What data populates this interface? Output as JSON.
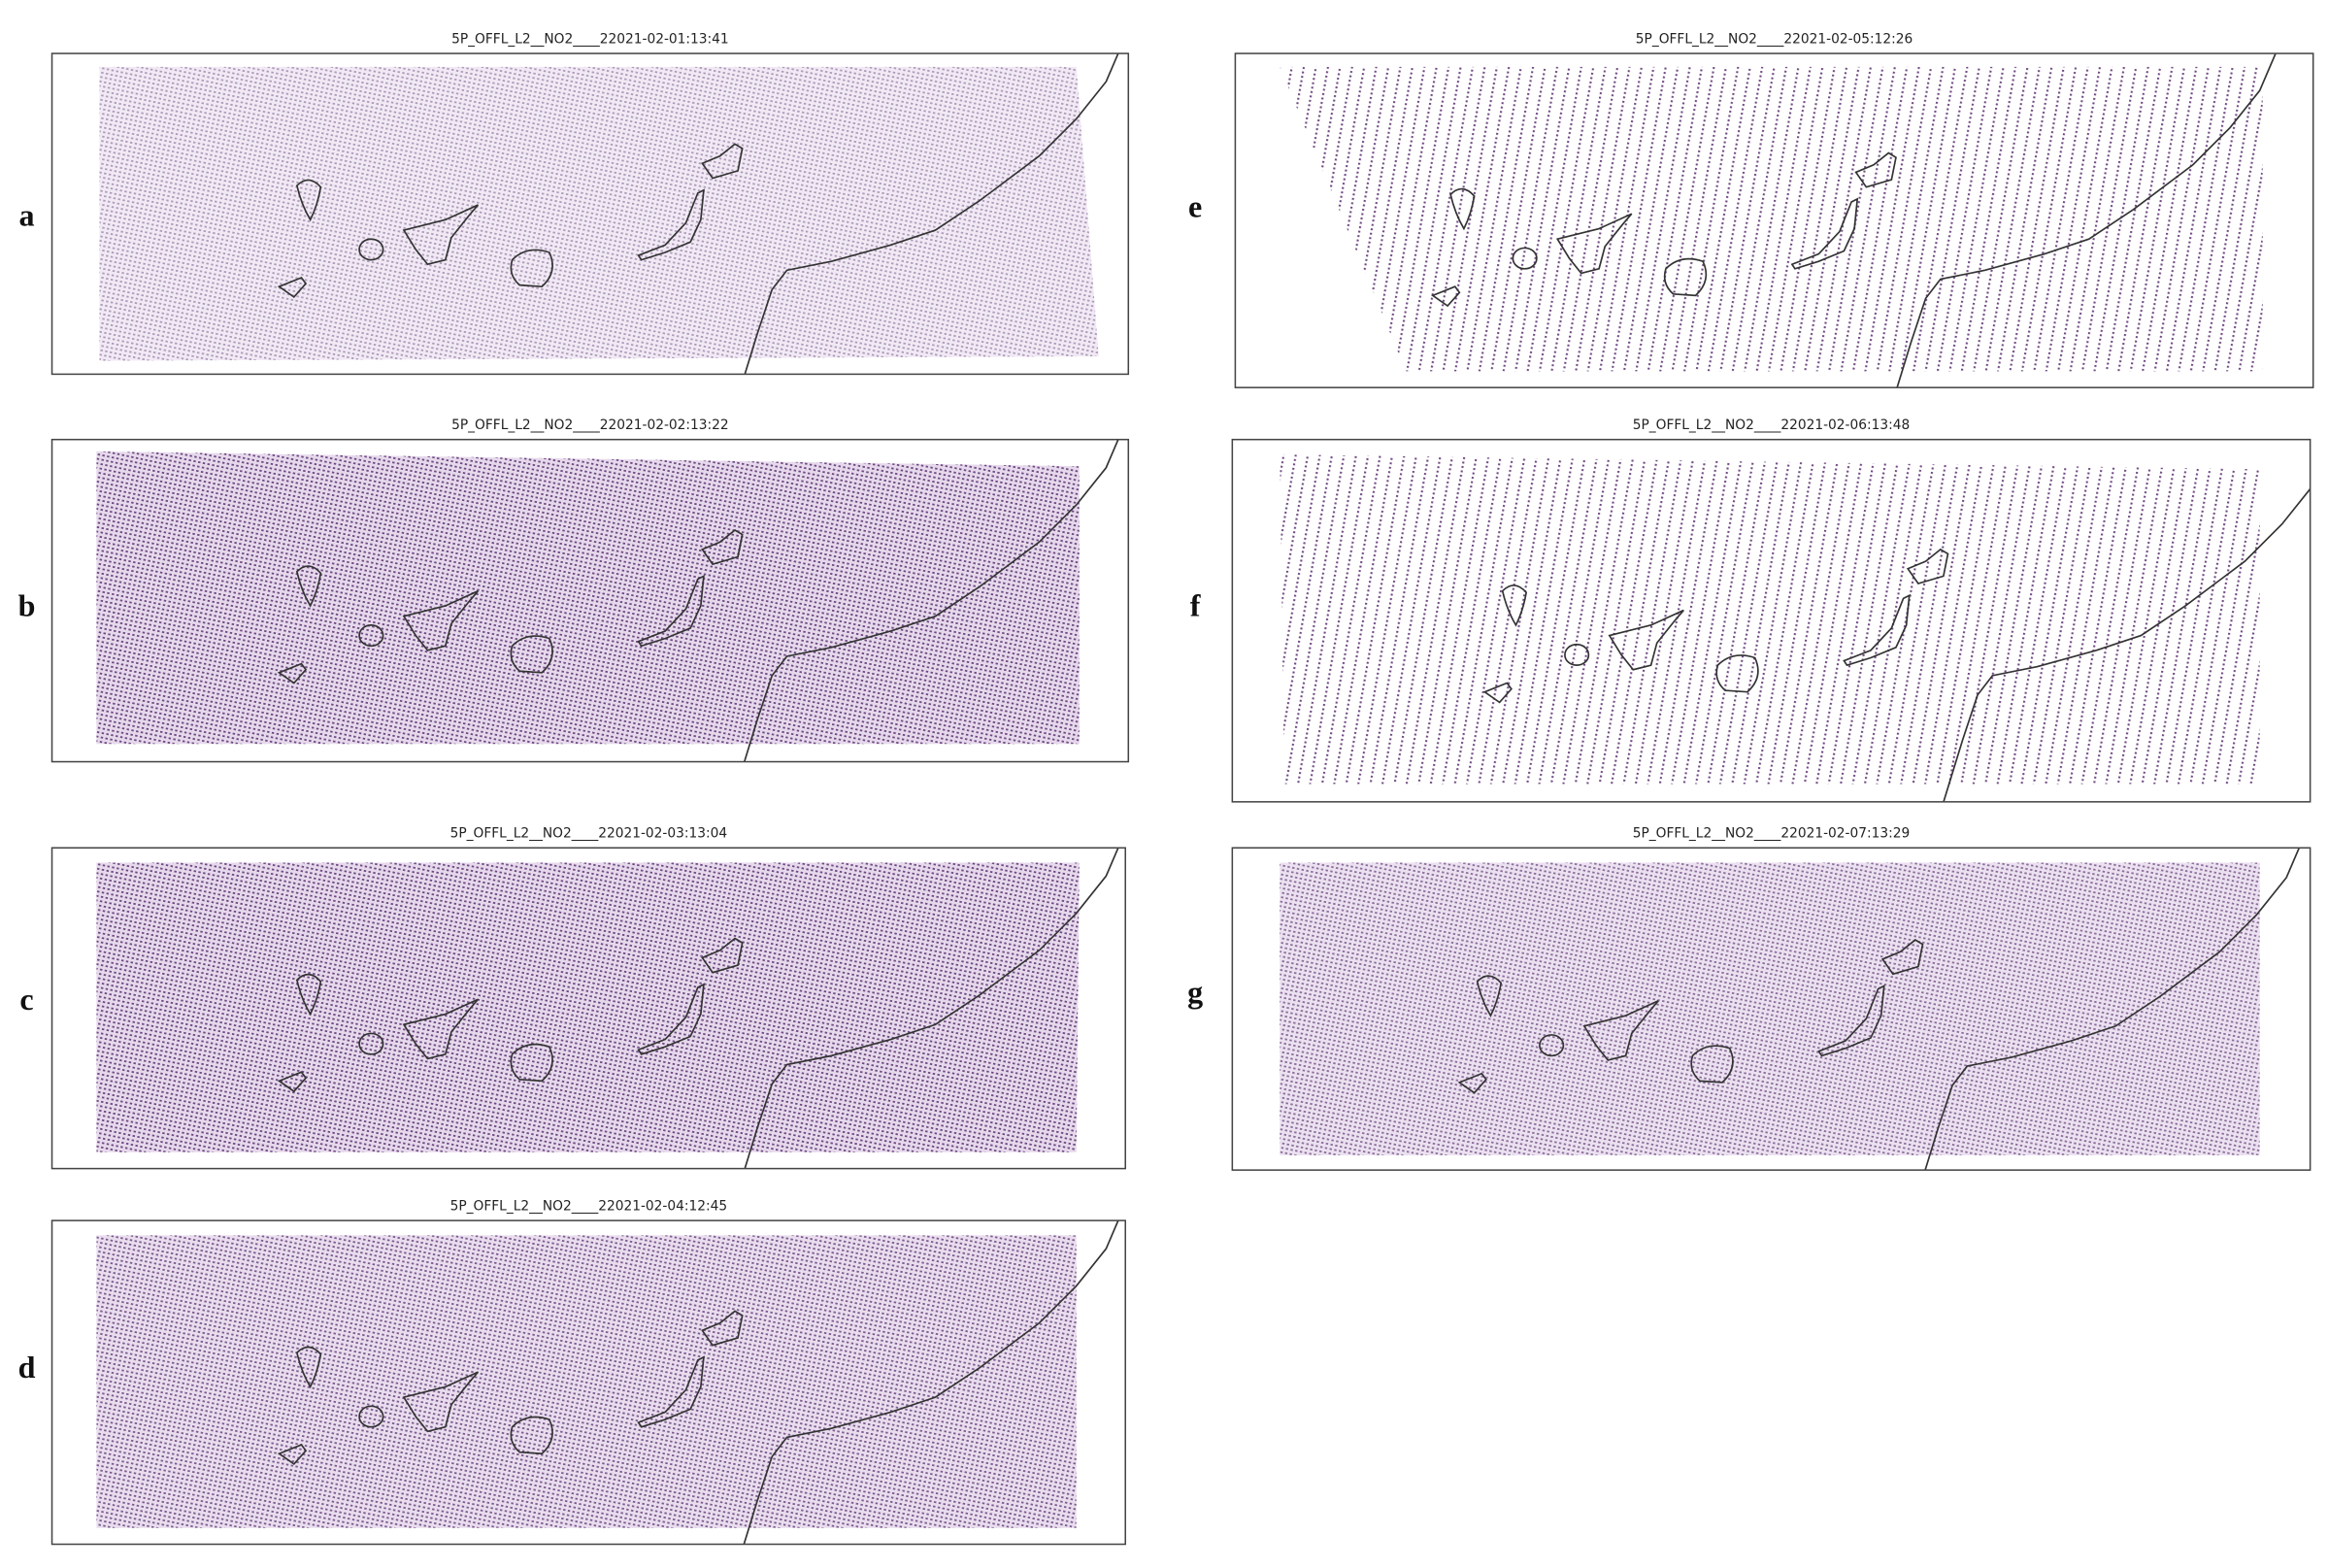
{
  "panels": [
    {
      "label": "a",
      "title": "5P_OFFL_L2__NO2____22021-02-01:13:41"
    },
    {
      "label": "b",
      "title": "5P_OFFL_L2__NO2____22021-02-02:13:22"
    },
    {
      "label": "c",
      "title": "5P_OFFL_L2__NO2____22021-02-03:13:04"
    },
    {
      "label": "d",
      "title": "5P_OFFL_L2__NO2____22021-02-04:12:45"
    },
    {
      "label": "e",
      "title": "5P_OFFL_L2__NO2____22021-02-05:12:26"
    },
    {
      "label": "f",
      "title": "5P_OFFL_L2__NO2____22021-02-06:13:48"
    },
    {
      "label": "g",
      "title": "5P_OFFL_L2__NO2____22021-02-07:13:29"
    }
  ]
}
